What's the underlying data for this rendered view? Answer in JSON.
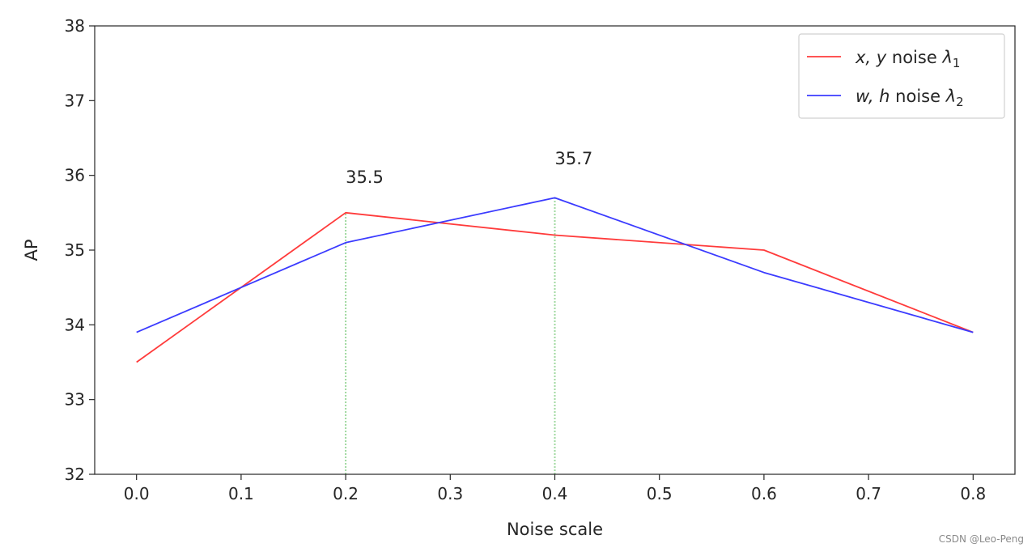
{
  "chart_data": {
    "type": "line",
    "xlabel": "Noise scale",
    "ylabel": "AP",
    "xlim": [
      -0.04,
      0.84
    ],
    "ylim": [
      32,
      38
    ],
    "xticks": [
      0.0,
      0.1,
      0.2,
      0.3,
      0.4,
      0.5,
      0.6,
      0.7,
      0.8
    ],
    "xtick_labels": [
      "0.0",
      "0.1",
      "0.2",
      "0.3",
      "0.4",
      "0.5",
      "0.6",
      "0.7",
      "0.8"
    ],
    "yticks": [
      32,
      33,
      34,
      35,
      36,
      37,
      38
    ],
    "ytick_labels": [
      "32",
      "33",
      "34",
      "35",
      "36",
      "37",
      "38"
    ],
    "grid": false,
    "legend_position": "top-right",
    "series": [
      {
        "name": "x, y noise λ1",
        "legend": {
          "italic": "x, y",
          "plain": " noise ",
          "lambda": "λ",
          "sub": "1"
        },
        "color": "#ff3b3b",
        "x": [
          0.0,
          0.2,
          0.4,
          0.6,
          0.8
        ],
        "y": [
          33.5,
          35.5,
          35.2,
          35.0,
          33.9
        ]
      },
      {
        "name": "w, h noise λ2",
        "legend": {
          "italic": "w, h",
          "plain": " noise ",
          "lambda": "λ",
          "sub": "2"
        },
        "color": "#3b3bff",
        "x": [
          0.0,
          0.1,
          0.2,
          0.4,
          0.6,
          0.8
        ],
        "y": [
          33.9,
          34.5,
          35.1,
          35.7,
          34.7,
          33.9
        ]
      }
    ],
    "vlines": [
      {
        "x": 0.2,
        "y0": 32,
        "y1": 35.5,
        "color": "#9fd89f"
      },
      {
        "x": 0.4,
        "y0": 32,
        "y1": 35.7,
        "color": "#9fd89f"
      }
    ],
    "annotations": [
      {
        "text": "35.5",
        "x": 0.2,
        "y": 35.9
      },
      {
        "text": "35.7",
        "x": 0.4,
        "y": 36.15
      }
    ]
  },
  "watermark": "CSDN @Leo-Peng"
}
